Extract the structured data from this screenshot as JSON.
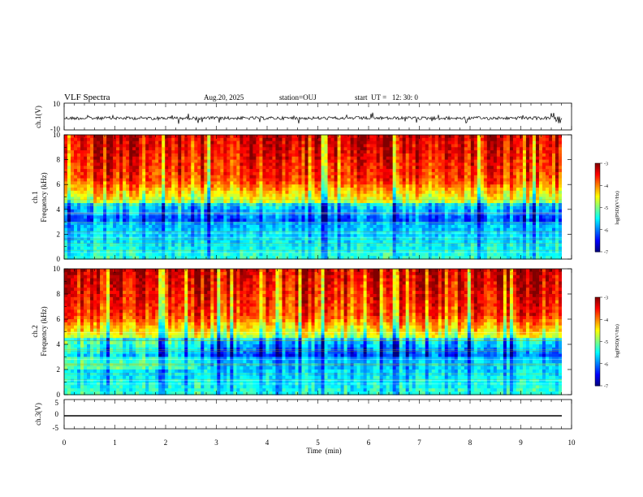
{
  "header": {
    "title": "VLF Spectra",
    "date": "Aug.20, 2025",
    "station": "station=OUJ",
    "start": "start  UT =   12: 30: 0"
  },
  "chart_data": [
    {
      "type": "line",
      "ylabel": "ch.1(V)",
      "ylim": [
        -10,
        10
      ],
      "yticks": [
        "10",
        "-10"
      ],
      "xlim": [
        0,
        10
      ],
      "baseline": 0,
      "description_color": "#000000"
    },
    {
      "type": "heatmap",
      "ylabel_line1": "ch.1",
      "ylabel_line2": "Frequency  (kHz)",
      "ylim": [
        0,
        10
      ],
      "yticks": [
        "0",
        "2",
        "4",
        "6",
        "8",
        "10"
      ],
      "xlim": [
        0,
        9.8
      ],
      "colorbar": {
        "label": "log(PSD)(V²/Hz)",
        "ticks": [
          "-3",
          "-4",
          "-5",
          "-6",
          "-7"
        ],
        "range": [
          -7,
          -3
        ]
      }
    },
    {
      "type": "heatmap",
      "ylabel_line1": "ch.2",
      "ylabel_line2": "Frequency  (kHz)",
      "ylim": [
        0,
        10
      ],
      "yticks": [
        "0",
        "2",
        "4",
        "6",
        "8",
        "10"
      ],
      "xlim": [
        0,
        9.8
      ],
      "colorbar": {
        "label": "log(PSD)(V²/Hz)",
        "ticks": [
          "-3",
          "-4",
          "-5",
          "-6",
          "-7"
        ],
        "range": [
          -7,
          -3
        ]
      }
    },
    {
      "type": "line",
      "ylabel": "ch.3(V)",
      "ylim": [
        -5,
        5
      ],
      "yticks": [
        "5",
        "0",
        "-5"
      ],
      "xlim": [
        0,
        10
      ],
      "values_constant": -1.2
    }
  ],
  "xaxis": {
    "label": "Time  (min)",
    "ticks": [
      "0",
      "1",
      "2",
      "3",
      "4",
      "5",
      "6",
      "7",
      "8",
      "9",
      "10"
    ]
  },
  "colors": {
    "jet": [
      "#00007f",
      "#0000ff",
      "#007fff",
      "#00ffff",
      "#7fff7f",
      "#ffff00",
      "#ff7f00",
      "#ff0000",
      "#7f0000"
    ]
  }
}
